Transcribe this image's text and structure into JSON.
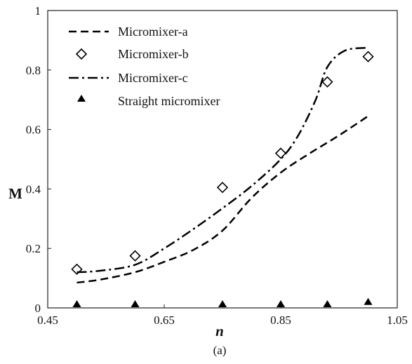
{
  "chart_data": {
    "type": "line",
    "xlabel": "n",
    "ylabel": "M",
    "caption": "(a)",
    "xlim": [
      0.45,
      1.05
    ],
    "ylim": [
      0,
      1
    ],
    "x_ticks": [
      "0.45",
      "0.65",
      "0.85",
      "1.05"
    ],
    "y_ticks": [
      "0",
      "0.2",
      "0.4",
      "0.6",
      "0.8",
      "1"
    ],
    "grid": false,
    "legend_position": "top-left",
    "series": [
      {
        "name": "Micromixer-a",
        "style": "dashed-line",
        "color": "#000000",
        "x": [
          0.5,
          0.54,
          0.6,
          0.65,
          0.7,
          0.75,
          0.8,
          0.85,
          0.9,
          0.95,
          1.0
        ],
        "y": [
          0.085,
          0.095,
          0.12,
          0.155,
          0.195,
          0.26,
          0.37,
          0.455,
          0.52,
          0.58,
          0.645
        ]
      },
      {
        "name": "Micromixer-b",
        "style": "open-diamond-markers",
        "color": "#000000",
        "x": [
          0.5,
          0.6,
          0.75,
          0.85,
          0.93,
          1.0
        ],
        "y": [
          0.13,
          0.175,
          0.405,
          0.52,
          0.76,
          0.845
        ]
      },
      {
        "name": "Micromixer-c",
        "style": "dash-dot-line",
        "color": "#000000",
        "x": [
          0.5,
          0.54,
          0.6,
          0.65,
          0.7,
          0.75,
          0.8,
          0.85,
          0.88,
          0.91,
          0.93,
          0.96,
          1.0
        ],
        "y": [
          0.12,
          0.125,
          0.145,
          0.2,
          0.265,
          0.335,
          0.41,
          0.5,
          0.58,
          0.7,
          0.81,
          0.865,
          0.875
        ]
      },
      {
        "name": "Straight micromixer",
        "style": "filled-triangle-markers",
        "color": "#000000",
        "x": [
          0.5,
          0.6,
          0.75,
          0.85,
          0.93,
          1.0
        ],
        "y": [
          0.0,
          0.0,
          0.0,
          0.0,
          0.0,
          0.01
        ]
      }
    ]
  }
}
